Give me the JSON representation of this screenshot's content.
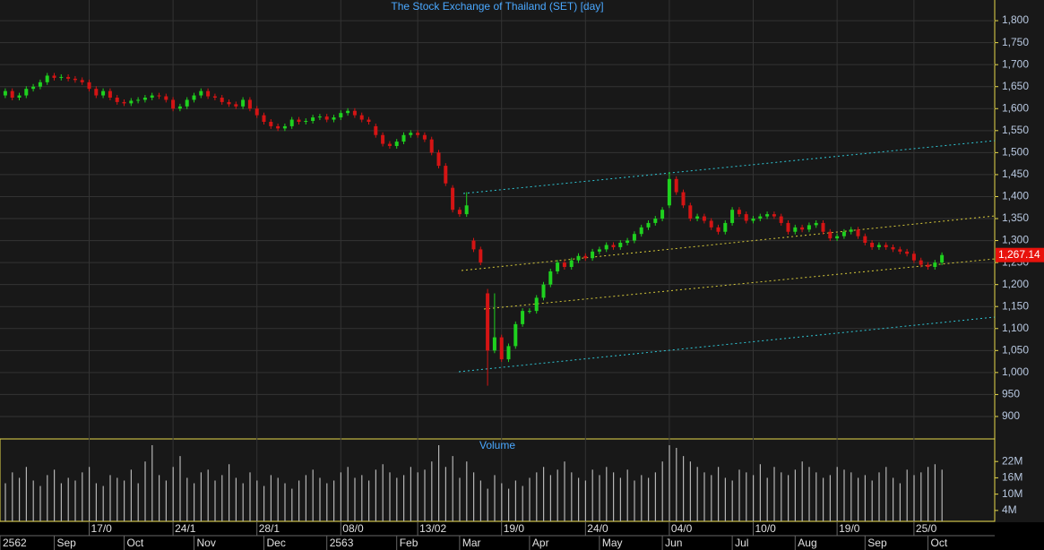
{
  "chart_data": {
    "type": "candlestick",
    "title": "The Stock Exchange of Thailand (SET) [day]",
    "up_color": "#1fd11f",
    "down_color": "#d41414",
    "last_label": "1,267.14",
    "categories": [
      null,
      null,
      null,
      null,
      null,
      null,
      null,
      null,
      null,
      null,
      null,
      null,
      "17/0",
      null,
      null,
      null,
      null,
      null,
      null,
      null,
      null,
      null,
      null,
      null,
      "24/1",
      null,
      null,
      null,
      null,
      null,
      null,
      null,
      null,
      null,
      null,
      null,
      "28/1",
      null,
      null,
      null,
      null,
      null,
      null,
      null,
      null,
      null,
      null,
      null,
      "08/0",
      null,
      null,
      null,
      null,
      null,
      null,
      null,
      null,
      null,
      null,
      "13/02",
      null,
      null,
      null,
      null,
      null,
      null,
      null,
      null,
      null,
      null,
      null,
      "19/0",
      null,
      null,
      null,
      null,
      null,
      null,
      null,
      null,
      null,
      null,
      null,
      "24/0",
      null,
      null,
      null,
      null,
      null,
      null,
      null,
      null,
      null,
      null,
      null,
      "04/0",
      null,
      null,
      null,
      null,
      null,
      null,
      null,
      null,
      null,
      null,
      null,
      "10/0",
      null,
      null,
      null,
      null,
      null,
      null,
      null,
      null,
      null,
      null,
      null,
      "19/0",
      null,
      null,
      null,
      null,
      null,
      null,
      null,
      null,
      null,
      null,
      "25/0",
      null,
      null,
      null,
      null
    ],
    "months": [
      "2562",
      null,
      null,
      null,
      null,
      null,
      null,
      "Sep",
      null,
      null,
      null,
      null,
      null,
      null,
      null,
      null,
      null,
      "Oct",
      null,
      null,
      null,
      null,
      null,
      null,
      null,
      null,
      null,
      "Nov",
      null,
      null,
      null,
      null,
      null,
      null,
      null,
      null,
      null,
      "Dec",
      null,
      null,
      null,
      null,
      null,
      null,
      null,
      null,
      "2563",
      null,
      null,
      null,
      null,
      null,
      null,
      null,
      null,
      null,
      "Feb",
      null,
      null,
      null,
      null,
      null,
      null,
      null,
      null,
      "Mar",
      null,
      null,
      null,
      null,
      null,
      null,
      null,
      null,
      null,
      "Apr",
      null,
      null,
      null,
      null,
      null,
      null,
      null,
      null,
      null,
      "May",
      null,
      null,
      null,
      null,
      null,
      null,
      null,
      null,
      "Jun",
      null,
      null,
      null,
      null,
      null,
      null,
      null,
      null,
      null,
      "Jul",
      null,
      null,
      null,
      null,
      null,
      null,
      null,
      null,
      "Aug",
      null,
      null,
      null,
      null,
      null,
      null,
      null,
      null,
      null,
      "Sep",
      null,
      null,
      null,
      null,
      null,
      null,
      null,
      null,
      "Oct",
      null,
      null
    ],
    "open": [
      1630,
      1640,
      1625,
      1630,
      1645,
      1650,
      1660,
      1675,
      1670,
      1672,
      1668,
      1665,
      1660,
      1645,
      1630,
      1640,
      1625,
      1615,
      1612,
      1618,
      1620,
      1625,
      1630,
      1628,
      1620,
      1600,
      1605,
      1620,
      1630,
      1640,
      1628,
      1625,
      1615,
      1610,
      1605,
      1620,
      1600,
      1585,
      1570,
      1560,
      1555,
      1560,
      1575,
      1570,
      1572,
      1580,
      1582,
      1575,
      1580,
      1590,
      1595,
      1585,
      1575,
      1560,
      1540,
      1520,
      1515,
      1525,
      1540,
      1545,
      1540,
      1530,
      1500,
      1470,
      1420,
      1370,
      1360,
      1300,
      1280,
      1180,
      1050,
      1080,
      1030,
      1060,
      1110,
      1140,
      1140,
      1170,
      1200,
      1230,
      1250,
      1240,
      1255,
      1265,
      1260,
      1275,
      1280,
      1290,
      1285,
      1295,
      1300,
      1315,
      1330,
      1340,
      1350,
      1380,
      1440,
      1410,
      1380,
      1350,
      1355,
      1345,
      1330,
      1320,
      1340,
      1370,
      1360,
      1345,
      1350,
      1355,
      1360,
      1355,
      1340,
      1320,
      1330,
      1325,
      1335,
      1340,
      1320,
      1305,
      1310,
      1320,
      1325,
      1310,
      1295,
      1285,
      1290,
      1285,
      1280,
      1275,
      1270,
      1255,
      1245,
      1240,
      1250
    ],
    "high": [
      1646,
      1646,
      1636,
      1651,
      1656,
      1666,
      1681,
      1681,
      1678,
      1678,
      1674,
      1671,
      1666,
      1651,
      1646,
      1646,
      1631,
      1621,
      1624,
      1626,
      1631,
      1636,
      1636,
      1634,
      1626,
      1611,
      1626,
      1636,
      1646,
      1646,
      1634,
      1631,
      1621,
      1616,
      1626,
      1626,
      1606,
      1591,
      1576,
      1566,
      1566,
      1581,
      1581,
      1578,
      1586,
      1588,
      1588,
      1586,
      1596,
      1601,
      1601,
      1591,
      1581,
      1566,
      1546,
      1526,
      1531,
      1546,
      1551,
      1551,
      1546,
      1536,
      1506,
      1476,
      1426,
      1376,
      1410,
      1306,
      1286,
      1190,
      1180,
      1086,
      1066,
      1116,
      1146,
      1146,
      1176,
      1206,
      1236,
      1256,
      1256,
      1261,
      1271,
      1271,
      1281,
      1286,
      1296,
      1296,
      1301,
      1306,
      1321,
      1336,
      1346,
      1356,
      1376,
      1456,
      1446,
      1416,
      1386,
      1361,
      1361,
      1351,
      1336,
      1346,
      1376,
      1376,
      1366,
      1356,
      1361,
      1366,
      1366,
      1361,
      1346,
      1336,
      1336,
      1341,
      1346,
      1346,
      1326,
      1316,
      1326,
      1331,
      1331,
      1316,
      1301,
      1296,
      1296,
      1291,
      1286,
      1281,
      1276,
      1261,
      1251,
      1256,
      1273
    ],
    "low": [
      1624,
      1619,
      1619,
      1624,
      1639,
      1644,
      1654,
      1664,
      1664,
      1662,
      1659,
      1654,
      1639,
      1624,
      1624,
      1619,
      1609,
      1606,
      1606,
      1612,
      1614,
      1619,
      1622,
      1614,
      1594,
      1594,
      1599,
      1614,
      1624,
      1622,
      1619,
      1609,
      1604,
      1599,
      1599,
      1594,
      1579,
      1564,
      1554,
      1549,
      1549,
      1554,
      1564,
      1564,
      1566,
      1574,
      1569,
      1569,
      1574,
      1584,
      1579,
      1569,
      1564,
      1534,
      1514,
      1509,
      1509,
      1519,
      1534,
      1534,
      1524,
      1494,
      1464,
      1424,
      1364,
      1354,
      1354,
      1274,
      1244,
      970,
      1044,
      1024,
      1024,
      1054,
      1104,
      1134,
      1134,
      1164,
      1194,
      1224,
      1234,
      1234,
      1249,
      1254,
      1254,
      1269,
      1274,
      1279,
      1279,
      1289,
      1294,
      1309,
      1324,
      1334,
      1344,
      1374,
      1404,
      1374,
      1344,
      1344,
      1339,
      1324,
      1314,
      1314,
      1334,
      1354,
      1339,
      1339,
      1344,
      1349,
      1349,
      1334,
      1314,
      1314,
      1319,
      1319,
      1329,
      1314,
      1299,
      1299,
      1304,
      1314,
      1304,
      1289,
      1279,
      1279,
      1279,
      1274,
      1269,
      1264,
      1249,
      1239,
      1234,
      1234,
      1244
    ],
    "close": [
      1640,
      1625,
      1630,
      1645,
      1650,
      1660,
      1675,
      1670,
      1672,
      1668,
      1665,
      1660,
      1645,
      1630,
      1640,
      1625,
      1615,
      1612,
      1618,
      1620,
      1625,
      1630,
      1628,
      1620,
      1600,
      1605,
      1620,
      1630,
      1640,
      1628,
      1625,
      1615,
      1610,
      1605,
      1620,
      1600,
      1585,
      1570,
      1560,
      1555,
      1560,
      1575,
      1570,
      1572,
      1580,
      1582,
      1575,
      1580,
      1590,
      1595,
      1585,
      1575,
      1570,
      1540,
      1520,
      1515,
      1525,
      1540,
      1545,
      1540,
      1530,
      1500,
      1470,
      1430,
      1370,
      1360,
      1380,
      1280,
      1250,
      1050,
      1080,
      1030,
      1060,
      1110,
      1140,
      1140,
      1170,
      1200,
      1230,
      1250,
      1240,
      1255,
      1265,
      1260,
      1275,
      1280,
      1290,
      1285,
      1295,
      1300,
      1315,
      1330,
      1340,
      1350,
      1370,
      1440,
      1410,
      1380,
      1350,
      1355,
      1345,
      1330,
      1320,
      1340,
      1370,
      1360,
      1345,
      1350,
      1355,
      1360,
      1355,
      1340,
      1320,
      1330,
      1325,
      1335,
      1340,
      1320,
      1305,
      1310,
      1320,
      1325,
      1310,
      1295,
      1285,
      1290,
      1285,
      1280,
      1275,
      1270,
      1255,
      1245,
      1240,
      1250,
      1267.14
    ],
    "ylim": [
      849,
      1847
    ],
    "yticks": [
      900,
      950,
      {
        "value": 1000,
        "label": "1,000"
      },
      {
        "value": 1050,
        "label": "1,050"
      },
      {
        "value": 1100,
        "label": "1,100"
      },
      {
        "value": 1150,
        "label": "1,150"
      },
      {
        "value": 1200,
        "label": "1,200"
      },
      {
        "value": 1250,
        "label": "1,250"
      },
      {
        "value": 1300,
        "label": "1,300"
      },
      {
        "value": 1350,
        "label": "1,350"
      },
      {
        "value": 1400,
        "label": "1,400"
      },
      {
        "value": 1450,
        "label": "1,450"
      },
      {
        "value": 1500,
        "label": "1,500"
      },
      {
        "value": 1550,
        "label": "1,550"
      },
      {
        "value": 1600,
        "label": "1,600"
      },
      {
        "value": 1650,
        "label": "1,650"
      },
      {
        "value": 1700,
        "label": "1,700"
      },
      {
        "value": 1750,
        "label": "1,750"
      },
      {
        "value": 1800,
        "label": "1,800"
      }
    ],
    "grid": true,
    "volume": {
      "title": "Volume",
      "color": "#b4b4b4",
      "ylim": [
        0,
        30.3
      ],
      "yticks": [
        {
          "value": 4,
          "label": "4M"
        },
        {
          "value": 10,
          "label": "10M"
        },
        {
          "value": 16,
          "label": "16M"
        },
        {
          "value": 22,
          "label": "22M"
        }
      ],
      "values": [
        14,
        18,
        16,
        20,
        15,
        13,
        17,
        19,
        14,
        16,
        15,
        18,
        20,
        14,
        13,
        17,
        16,
        15,
        19,
        14,
        22,
        28,
        17,
        15,
        20,
        24,
        16,
        14,
        18,
        19,
        15,
        17,
        21,
        16,
        14,
        18,
        15,
        13,
        17,
        16,
        14,
        12,
        15,
        17,
        19,
        16,
        14,
        15,
        18,
        20,
        16,
        17,
        15,
        19,
        21,
        18,
        16,
        17,
        20,
        18,
        19,
        22,
        28,
        20,
        24,
        16,
        22,
        18,
        15,
        12,
        17,
        14,
        12,
        15,
        13,
        16,
        18,
        20,
        17,
        19,
        22,
        18,
        16,
        15,
        19,
        17,
        20,
        18,
        16,
        19,
        15,
        17,
        16,
        18,
        22,
        28,
        27,
        24,
        22,
        20,
        18,
        17,
        20,
        16,
        15,
        19,
        18,
        17,
        21,
        16,
        20,
        18,
        17,
        19,
        22,
        20,
        18,
        16,
        17,
        20,
        19,
        18,
        16,
        17,
        15,
        18,
        20,
        16,
        14,
        19,
        17,
        18,
        20,
        21,
        19
      ]
    }
  }
}
